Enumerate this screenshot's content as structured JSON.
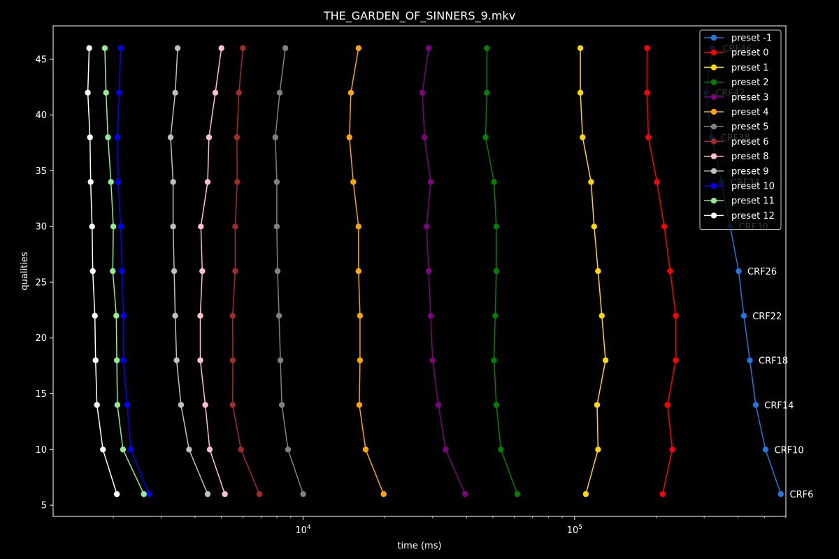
{
  "chart_data": {
    "type": "line",
    "title": "THE_GARDEN_OF_SINNERS_9.mkv",
    "xlabel": "time (ms)",
    "ylabel": "qualities",
    "xscale": "log",
    "xlim": [
      1200,
      600000
    ],
    "ylim": [
      4,
      48
    ],
    "grid": false,
    "legend_position": "top-right",
    "x_tick_labels": [
      {
        "value": 10000,
        "base": "10",
        "exp": "4"
      },
      {
        "value": 100000,
        "base": "10",
        "exp": "5"
      }
    ],
    "y_ticks": [
      5,
      10,
      15,
      20,
      25,
      30,
      35,
      40,
      45
    ],
    "y": [
      46,
      42,
      38,
      34,
      30,
      26,
      22,
      18,
      14,
      10,
      6
    ],
    "series": [
      {
        "name": "preset -1",
        "color": "#1f77e0",
        "values": [
          322000,
          305000,
          320000,
          348000,
          374000,
          402000,
          420000,
          442000,
          465000,
          505000,
          575000
        ]
      },
      {
        "name": "preset 0",
        "color": "#ff0000",
        "values": [
          185000,
          185000,
          187000,
          201000,
          214000,
          225000,
          236000,
          236000,
          220000,
          229000,
          211000
        ]
      },
      {
        "name": "preset 1",
        "color": "#ffd700",
        "values": [
          105000,
          105000,
          107000,
          115000,
          118000,
          122000,
          126000,
          130000,
          121000,
          122000,
          110000
        ]
      },
      {
        "name": "preset 2",
        "color": "#008000",
        "values": [
          47500,
          47500,
          47000,
          50500,
          51500,
          51500,
          51000,
          50500,
          51500,
          53500,
          61500
        ]
      },
      {
        "name": "preset 3",
        "color": "#800080",
        "values": [
          29000,
          27500,
          28000,
          29500,
          28500,
          29000,
          29500,
          30000,
          31500,
          33500,
          39500
        ]
      },
      {
        "name": "preset 4",
        "color": "#ffa500",
        "values": [
          16000,
          15000,
          14800,
          15300,
          16000,
          16000,
          16200,
          16200,
          16100,
          17000,
          19800
        ]
      },
      {
        "name": "preset 5",
        "color": "#808080",
        "values": [
          8600,
          8200,
          7900,
          8000,
          8000,
          8050,
          8150,
          8250,
          8350,
          8800,
          10000
        ]
      },
      {
        "name": "preset 6",
        "color": "#a52a2a",
        "values": [
          6000,
          5800,
          5700,
          5720,
          5620,
          5620,
          5500,
          5510,
          5500,
          5900,
          6900
        ]
      },
      {
        "name": "preset 8",
        "color": "#ffc0cb",
        "values": [
          5000,
          4750,
          4500,
          4450,
          4200,
          4250,
          4180,
          4180,
          4360,
          4530,
          5150
        ]
      },
      {
        "name": "preset 9",
        "color": "#c0c0c0",
        "values": [
          3450,
          3380,
          3250,
          3320,
          3320,
          3350,
          3380,
          3420,
          3550,
          3800,
          4450
        ]
      },
      {
        "name": "preset 10",
        "color": "#0000ff",
        "values": [
          2130,
          2100,
          2070,
          2080,
          2130,
          2150,
          2180,
          2180,
          2250,
          2320,
          2700
        ]
      },
      {
        "name": "preset 11",
        "color": "#90ee90",
        "values": [
          1860,
          1880,
          1910,
          1960,
          2000,
          1990,
          2050,
          2060,
          2070,
          2170,
          2590
        ]
      },
      {
        "name": "preset 12",
        "color": "#ffffff",
        "values": [
          1630,
          1610,
          1640,
          1650,
          1670,
          1680,
          1710,
          1720,
          1740,
          1830,
          2060
        ]
      }
    ],
    "annotations": [
      {
        "text": "CRF46",
        "x": 350000,
        "y": 46
      },
      {
        "text": "CRF42",
        "x": 330000,
        "y": 42
      },
      {
        "text": "CRF38",
        "x": 345000,
        "y": 38
      },
      {
        "text": "CRF34",
        "x": 375000,
        "y": 34
      },
      {
        "text": "CRF30",
        "x": 402000,
        "y": 30
      },
      {
        "text": "CRF26",
        "x": 433000,
        "y": 26
      },
      {
        "text": "CRF22",
        "x": 452000,
        "y": 22
      },
      {
        "text": "CRF18",
        "x": 476000,
        "y": 18
      },
      {
        "text": "CRF14",
        "x": 500000,
        "y": 14
      },
      {
        "text": "CRF10",
        "x": 544000,
        "y": 10
      },
      {
        "text": "CRF6",
        "x": 620000,
        "y": 6
      }
    ]
  }
}
